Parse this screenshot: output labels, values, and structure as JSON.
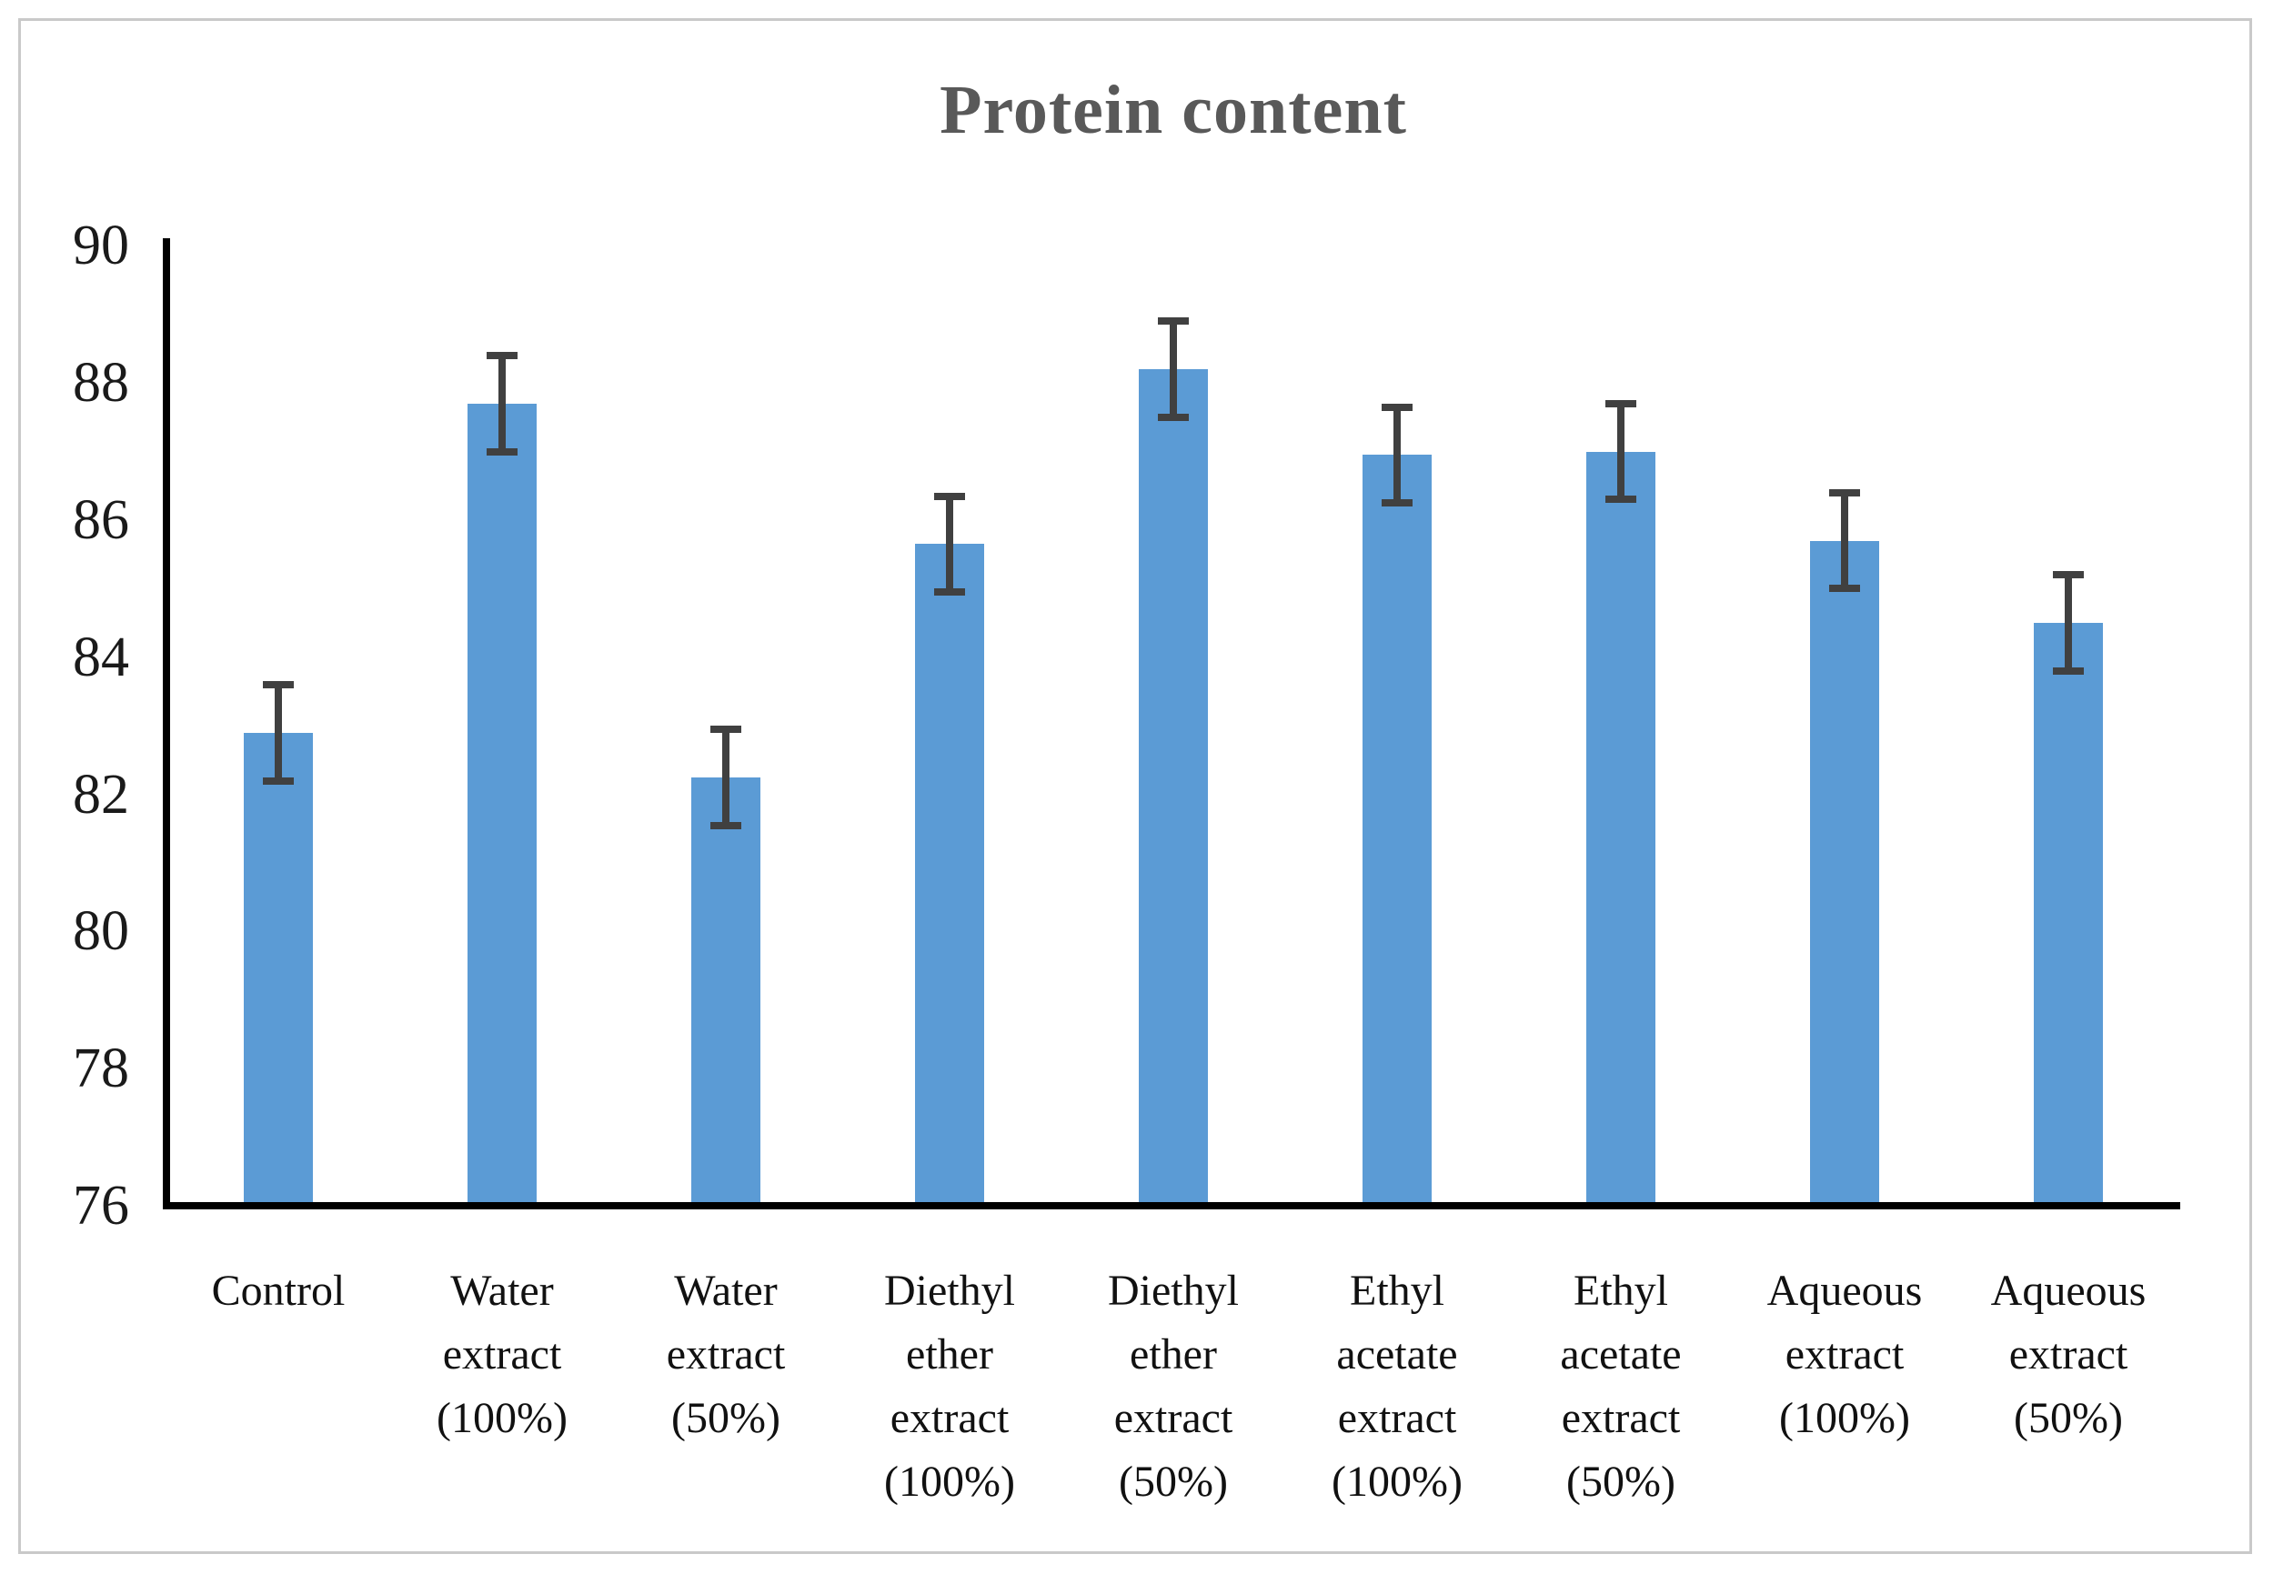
{
  "figure": {
    "background": "#ffffff",
    "frame_color": "#c9c9c9"
  },
  "chart_data": {
    "type": "bar",
    "title": "Protein content",
    "title_color": "#595959",
    "bar_color": "#5b9bd5",
    "error_bar_color": "#404040",
    "axis_color": "#000000",
    "grid": false,
    "legend": null,
    "xlabel": "",
    "ylabel": "",
    "ylim": [
      76,
      90
    ],
    "yticks": [
      90,
      88,
      86,
      84,
      82,
      80,
      78,
      76
    ],
    "categories": [
      "Control",
      "Water extract (100%)",
      "Water extract (50%)",
      "Diethyl ether extract (100%)",
      "Diethyl ether extract (50%)",
      "Ethyl acetate extract (100%)",
      "Ethyl acetate extract (50%)",
      "Aqueous extract (100%)",
      "Aqueous extract (50%)"
    ],
    "category_lines": [
      [
        "Control"
      ],
      [
        "Water",
        "extract",
        "(100%)"
      ],
      [
        "Water",
        "extract",
        "(50%)"
      ],
      [
        "Diethyl",
        "ether",
        "extract",
        "(100%)"
      ],
      [
        "Diethyl",
        "ether",
        "extract",
        "(50%)"
      ],
      [
        "Ethyl",
        "acetate",
        "extract",
        "(100%)"
      ],
      [
        "Ethyl",
        "acetate",
        "extract",
        "(50%)"
      ],
      [
        "Aqueous",
        "extract",
        "(100%)"
      ],
      [
        "Aqueous",
        "extract",
        "(50%)"
      ]
    ],
    "values": [
      82.9,
      87.7,
      82.25,
      85.65,
      88.2,
      86.95,
      87.0,
      85.7,
      84.5
    ],
    "errors": [
      0.7,
      0.7,
      0.7,
      0.7,
      0.7,
      0.7,
      0.7,
      0.7,
      0.7
    ]
  }
}
